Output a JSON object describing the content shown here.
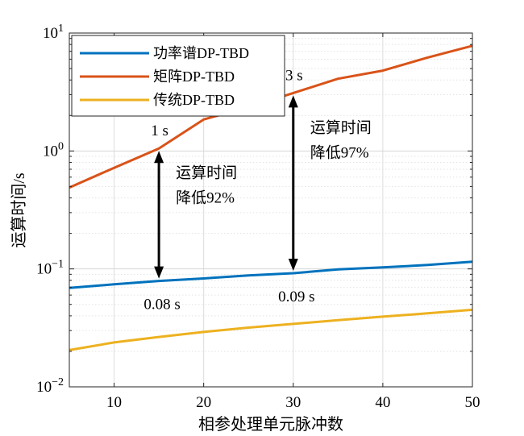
{
  "chart_data": {
    "type": "line",
    "xlabel": "相参处理单元脉冲数",
    "ylabel": "运算时间/s",
    "yscale": "log",
    "xlim": [
      5,
      50
    ],
    "ylim": [
      0.01,
      10
    ],
    "grid": true,
    "minor_grid": true,
    "legend_position": "top-left",
    "x_ticks": [
      10,
      20,
      30,
      40,
      50
    ],
    "y_ticks": [
      {
        "value": 0.01,
        "base": "10",
        "exp": "−2"
      },
      {
        "value": 0.1,
        "base": "10",
        "exp": "−1"
      },
      {
        "value": 1,
        "base": "10",
        "exp": "0"
      },
      {
        "value": 10,
        "base": "10",
        "exp": "1"
      }
    ],
    "series": [
      {
        "name": "功率谱DP-TBD",
        "color": "#0072BD",
        "x": [
          5,
          10,
          15,
          20,
          25,
          30,
          35,
          40,
          45,
          50
        ],
        "y": [
          0.069,
          0.074,
          0.079,
          0.083,
          0.088,
          0.092,
          0.099,
          0.103,
          0.108,
          0.115
        ]
      },
      {
        "name": "矩阵DP-TBD",
        "color": "#D95319",
        "x": [
          5,
          10,
          15,
          20,
          25,
          30,
          35,
          40,
          45,
          50
        ],
        "y": [
          0.49,
          0.72,
          1.05,
          1.85,
          2.35,
          3.1,
          4.1,
          4.8,
          6.2,
          7.8
        ]
      },
      {
        "name": "传统DP-TBD",
        "color": "#EDB120",
        "x": [
          5,
          10,
          15,
          20,
          25,
          30,
          35,
          40,
          45,
          50
        ],
        "y": [
          0.0205,
          0.0238,
          0.0265,
          0.0292,
          0.0318,
          0.0342,
          0.0368,
          0.0394,
          0.042,
          0.045
        ]
      }
    ],
    "annotations": [
      {
        "id": "a15",
        "x": 15,
        "y_top": 1.05,
        "y_bottom": 0.079,
        "top_label": "1 s",
        "bottom_label": "0.08 s",
        "text_lines": [
          "运算时间",
          "降低92%"
        ]
      },
      {
        "id": "a30",
        "x": 30,
        "y_top": 3.1,
        "y_bottom": 0.092,
        "top_label": "3 s",
        "bottom_label": "0.09 s",
        "text_lines": [
          "运算时间",
          "降低97%"
        ]
      }
    ]
  }
}
